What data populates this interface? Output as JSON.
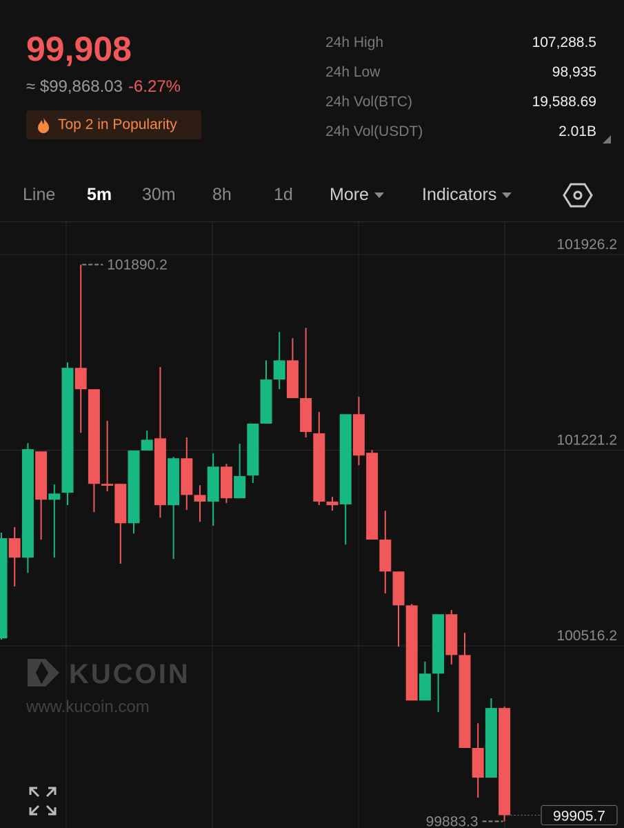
{
  "header": {
    "price": "99,908",
    "approx": "≈ $99,868.03",
    "change": "-6.27%",
    "badge": "Top 2 in Popularity"
  },
  "stats": [
    {
      "label": "24h High",
      "value": "107,288.5"
    },
    {
      "label": "24h Low",
      "value": "98,935"
    },
    {
      "label": "24h Vol(BTC)",
      "value": "19,588.69"
    },
    {
      "label": "24h Vol(USDT)",
      "value": "2.01B"
    }
  ],
  "tabs": [
    "Line",
    "5m",
    "30m",
    "8h",
    "1d",
    "More",
    "Indicators"
  ],
  "watermark": {
    "brand": "KUCOIN",
    "url": "www.kucoin.com"
  },
  "chart_data": {
    "type": "candlestick",
    "open": [
      100543,
      100904,
      100834,
      101217,
      101043,
      101068,
      101518,
      101441,
      101100,
      101100,
      100958,
      101220,
      101264,
      101023,
      101192,
      101060,
      101036,
      101162,
      101048,
      101130,
      101317,
      101476,
      101545,
      101409,
      101282,
      101036,
      101026,
      101351,
      101212,
      100899,
      100784,
      100662,
      100319,
      100416,
      100630,
      100483,
      100148,
      100041,
      100292
    ],
    "high": [
      100924,
      100944,
      101247,
      101217,
      101098,
      101538,
      101890.2,
      101441,
      101327,
      101100,
      101220,
      101292,
      101521,
      101197,
      101267,
      101095,
      101210,
      101172,
      101244,
      101317,
      101545,
      101647,
      101625,
      101662,
      101359,
      101053,
      101351,
      101414,
      101222,
      101003,
      100784,
      100667,
      100459,
      100630,
      100645,
      100563,
      100237,
      100327,
      100297
    ],
    "low": [
      100538,
      100730,
      100779,
      100899,
      100834,
      101023,
      101284,
      100998,
      101073,
      100812,
      100921,
      101220,
      100978,
      100829,
      101006,
      100963,
      100949,
      101031,
      101048,
      101103,
      101317,
      101441,
      101409,
      101267,
      101023,
      101003,
      100881,
      101167,
      100899,
      100705,
      100513,
      100319,
      100319,
      100277,
      100449,
      100148,
      99969,
      100041,
      99883.3
    ],
    "close": [
      100904,
      100834,
      101225,
      101043,
      101065,
      101518,
      101441,
      101100,
      101093,
      100958,
      101220,
      101259,
      101023,
      101192,
      101060,
      101036,
      101162,
      101048,
      101128,
      101317,
      101476,
      101545,
      101409,
      101287,
      101036,
      101023,
      101351,
      101202,
      100899,
      100784,
      100662,
      100319,
      100416,
      100630,
      100483,
      100148,
      100041,
      100292,
      99905.7
    ],
    "colors": {
      "up": "#17b883",
      "down": "#f0585a"
    },
    "ylim": [
      99859.5,
      102043.1
    ],
    "yticks": [
      101926.2,
      101221.2,
      100516.2
    ],
    "grid": true
  }
}
